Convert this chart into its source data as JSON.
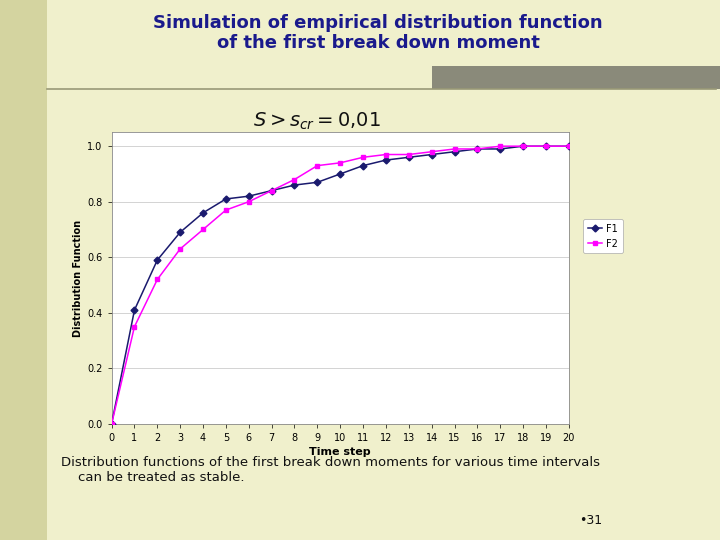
{
  "title": "Simulation of empirical distribution function\nof the first break down moment",
  "title_color": "#1a1a8c",
  "background_color": "#f0f0cc",
  "plot_bg_color": "#ffffff",
  "xlabel": "Time step",
  "ylabel": "Distribution Function",
  "x_data": [
    0,
    1,
    2,
    3,
    4,
    5,
    6,
    7,
    8,
    9,
    10,
    11,
    12,
    13,
    14,
    15,
    16,
    17,
    18,
    19,
    20
  ],
  "F1": [
    0.0,
    0.41,
    0.59,
    0.69,
    0.76,
    0.81,
    0.82,
    0.84,
    0.86,
    0.87,
    0.9,
    0.93,
    0.95,
    0.96,
    0.97,
    0.98,
    0.99,
    0.99,
    1.0,
    1.0,
    1.0
  ],
  "F2": [
    0.0,
    0.35,
    0.52,
    0.63,
    0.7,
    0.77,
    0.8,
    0.84,
    0.88,
    0.93,
    0.94,
    0.96,
    0.97,
    0.97,
    0.98,
    0.99,
    0.99,
    1.0,
    1.0,
    1.0,
    1.0
  ],
  "F1_color": "#1a1a6e",
  "F2_color": "#ff00ff",
  "ylim": [
    0,
    1.05
  ],
  "xlim": [
    0,
    20
  ],
  "yticks": [
    0,
    0.2,
    0.4,
    0.6,
    0.8,
    1
  ],
  "xticks": [
    0,
    1,
    2,
    3,
    4,
    5,
    6,
    7,
    8,
    9,
    10,
    11,
    12,
    13,
    14,
    15,
    16,
    17,
    18,
    19,
    20
  ],
  "footer_text": "Distribution functions of the first break down moments for various time intervals\n    can be treated as stable.",
  "slide_number": "•31",
  "left_bar_color": "#d4d4a0",
  "top_bar_color": "#8a8a7a",
  "annotation_formula": "$S > s_{cr} = 0{,}01$",
  "hline_color": "#999977"
}
